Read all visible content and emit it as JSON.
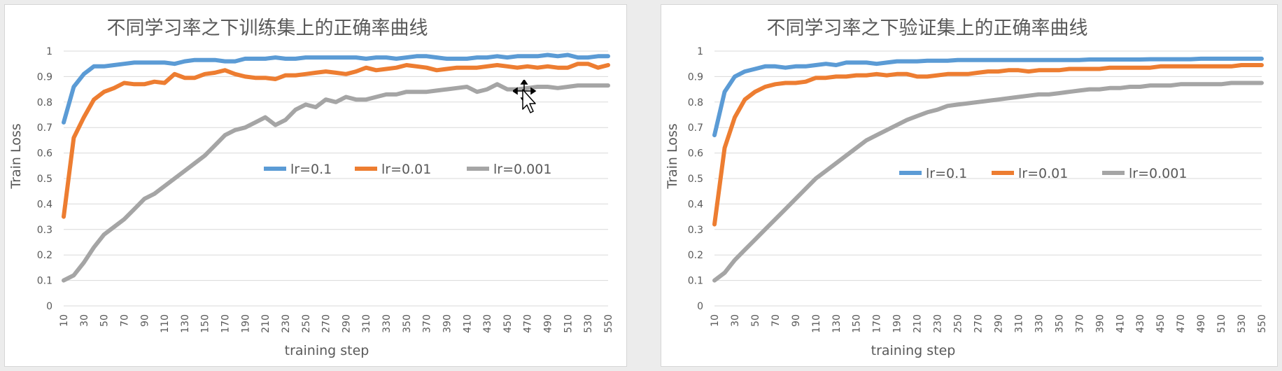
{
  "colors": {
    "s0": "#5b9bd5",
    "s1": "#ed7d31",
    "s2": "#a5a5a5"
  },
  "chart_data": [
    {
      "type": "line",
      "title": "不同学习率之下训练集上的正确率曲线",
      "xlabel": "training   step",
      "ylabel": "Train  Loss",
      "ylim": [
        0,
        1
      ],
      "yticks": [
        "0",
        "0.1",
        "0.2",
        "0.3",
        "0.4",
        "0.5",
        "0.6",
        "0.7",
        "0.8",
        "0.9",
        "1"
      ],
      "grid": true,
      "legend": "center-right",
      "x": [
        10,
        20,
        30,
        40,
        50,
        60,
        70,
        80,
        90,
        100,
        110,
        120,
        130,
        140,
        150,
        160,
        170,
        180,
        190,
        200,
        210,
        220,
        230,
        240,
        250,
        260,
        270,
        280,
        290,
        300,
        310,
        320,
        330,
        340,
        350,
        360,
        370,
        380,
        390,
        400,
        410,
        420,
        430,
        440,
        450,
        460,
        470,
        480,
        490,
        500,
        510,
        520,
        530,
        540,
        550
      ],
      "x_tick_labels": [
        "10",
        "30",
        "50",
        "70",
        "90",
        "110",
        "130",
        "150",
        "170",
        "190",
        "210",
        "230",
        "250",
        "270",
        "290",
        "310",
        "330",
        "350",
        "370",
        "390",
        "410",
        "430",
        "450",
        "470",
        "490",
        "510",
        "530",
        "550"
      ],
      "series": [
        {
          "name": "lr=0.1",
          "values": [
            0.72,
            0.86,
            0.91,
            0.94,
            0.94,
            0.945,
            0.95,
            0.955,
            0.955,
            0.955,
            0.955,
            0.95,
            0.96,
            0.965,
            0.965,
            0.965,
            0.96,
            0.96,
            0.97,
            0.97,
            0.97,
            0.975,
            0.97,
            0.97,
            0.975,
            0.975,
            0.975,
            0.975,
            0.975,
            0.975,
            0.97,
            0.975,
            0.975,
            0.97,
            0.975,
            0.98,
            0.98,
            0.975,
            0.97,
            0.97,
            0.97,
            0.975,
            0.975,
            0.98,
            0.975,
            0.98,
            0.98,
            0.98,
            0.985,
            0.98,
            0.985,
            0.975,
            0.975,
            0.98,
            0.98
          ]
        },
        {
          "name": "lr=0.01",
          "values": [
            0.35,
            0.66,
            0.74,
            0.81,
            0.84,
            0.855,
            0.875,
            0.87,
            0.87,
            0.88,
            0.875,
            0.91,
            0.895,
            0.895,
            0.91,
            0.915,
            0.925,
            0.91,
            0.9,
            0.895,
            0.895,
            0.89,
            0.905,
            0.905,
            0.91,
            0.915,
            0.92,
            0.915,
            0.91,
            0.92,
            0.935,
            0.925,
            0.93,
            0.935,
            0.945,
            0.94,
            0.935,
            0.925,
            0.93,
            0.935,
            0.935,
            0.935,
            0.94,
            0.945,
            0.94,
            0.935,
            0.94,
            0.935,
            0.94,
            0.935,
            0.935,
            0.95,
            0.95,
            0.935,
            0.945
          ]
        },
        {
          "name": "lr=0.001",
          "values": [
            0.1,
            0.12,
            0.17,
            0.23,
            0.28,
            0.31,
            0.34,
            0.38,
            0.42,
            0.44,
            0.47,
            0.5,
            0.53,
            0.56,
            0.59,
            0.63,
            0.67,
            0.69,
            0.7,
            0.72,
            0.74,
            0.71,
            0.73,
            0.77,
            0.79,
            0.78,
            0.81,
            0.8,
            0.82,
            0.81,
            0.81,
            0.82,
            0.83,
            0.83,
            0.84,
            0.84,
            0.84,
            0.845,
            0.85,
            0.855,
            0.86,
            0.84,
            0.85,
            0.87,
            0.85,
            0.85,
            0.855,
            0.86,
            0.86,
            0.855,
            0.86,
            0.865,
            0.865,
            0.865,
            0.865
          ]
        }
      ]
    },
    {
      "type": "line",
      "title": "不同学习率之下验证集上的正确率曲线",
      "xlabel": "training   step",
      "ylabel": "Train  Loss",
      "ylim": [
        0,
        1
      ],
      "yticks": [
        "0",
        "0.1",
        "0.2",
        "0.3",
        "0.4",
        "0.5",
        "0.6",
        "0.7",
        "0.8",
        "0.9",
        "1"
      ],
      "grid": true,
      "legend": "center-right",
      "x": [
        10,
        20,
        30,
        40,
        50,
        60,
        70,
        80,
        90,
        100,
        110,
        120,
        130,
        140,
        150,
        160,
        170,
        180,
        190,
        200,
        210,
        220,
        230,
        240,
        250,
        260,
        270,
        280,
        290,
        300,
        310,
        320,
        330,
        340,
        350,
        360,
        370,
        380,
        390,
        400,
        410,
        420,
        430,
        440,
        450,
        460,
        470,
        480,
        490,
        500,
        510,
        520,
        530,
        540,
        550
      ],
      "x_tick_labels": [
        "10",
        "30",
        "50",
        "70",
        "90",
        "110",
        "130",
        "150",
        "170",
        "190",
        "210",
        "230",
        "250",
        "270",
        "290",
        "310",
        "330",
        "350",
        "370",
        "390",
        "410",
        "430",
        "450",
        "470",
        "490",
        "510",
        "530",
        "550"
      ],
      "series": [
        {
          "name": "lr=0.1",
          "values": [
            0.67,
            0.84,
            0.9,
            0.92,
            0.93,
            0.94,
            0.94,
            0.935,
            0.94,
            0.94,
            0.945,
            0.95,
            0.945,
            0.955,
            0.955,
            0.955,
            0.95,
            0.955,
            0.96,
            0.96,
            0.96,
            0.962,
            0.962,
            0.962,
            0.965,
            0.965,
            0.965,
            0.965,
            0.965,
            0.965,
            0.965,
            0.965,
            0.965,
            0.965,
            0.965,
            0.965,
            0.965,
            0.967,
            0.967,
            0.967,
            0.967,
            0.967,
            0.967,
            0.968,
            0.968,
            0.968,
            0.968,
            0.968,
            0.97,
            0.97,
            0.97,
            0.97,
            0.97,
            0.97,
            0.97
          ]
        },
        {
          "name": "lr=0.01",
          "values": [
            0.32,
            0.62,
            0.74,
            0.81,
            0.84,
            0.86,
            0.87,
            0.875,
            0.875,
            0.88,
            0.895,
            0.895,
            0.9,
            0.9,
            0.905,
            0.905,
            0.91,
            0.905,
            0.91,
            0.91,
            0.9,
            0.9,
            0.905,
            0.91,
            0.91,
            0.91,
            0.915,
            0.92,
            0.92,
            0.925,
            0.925,
            0.92,
            0.925,
            0.925,
            0.925,
            0.93,
            0.93,
            0.93,
            0.93,
            0.935,
            0.935,
            0.935,
            0.935,
            0.935,
            0.94,
            0.94,
            0.94,
            0.94,
            0.94,
            0.94,
            0.94,
            0.94,
            0.945,
            0.945,
            0.945
          ]
        },
        {
          "name": "lr=0.001",
          "values": [
            0.1,
            0.13,
            0.18,
            0.22,
            0.26,
            0.3,
            0.34,
            0.38,
            0.42,
            0.46,
            0.5,
            0.53,
            0.56,
            0.59,
            0.62,
            0.65,
            0.67,
            0.69,
            0.71,
            0.73,
            0.745,
            0.76,
            0.77,
            0.785,
            0.79,
            0.795,
            0.8,
            0.805,
            0.81,
            0.815,
            0.82,
            0.825,
            0.83,
            0.83,
            0.835,
            0.84,
            0.845,
            0.85,
            0.85,
            0.855,
            0.855,
            0.86,
            0.86,
            0.865,
            0.865,
            0.865,
            0.87,
            0.87,
            0.87,
            0.87,
            0.87,
            0.875,
            0.875,
            0.875,
            0.875
          ]
        }
      ]
    }
  ]
}
